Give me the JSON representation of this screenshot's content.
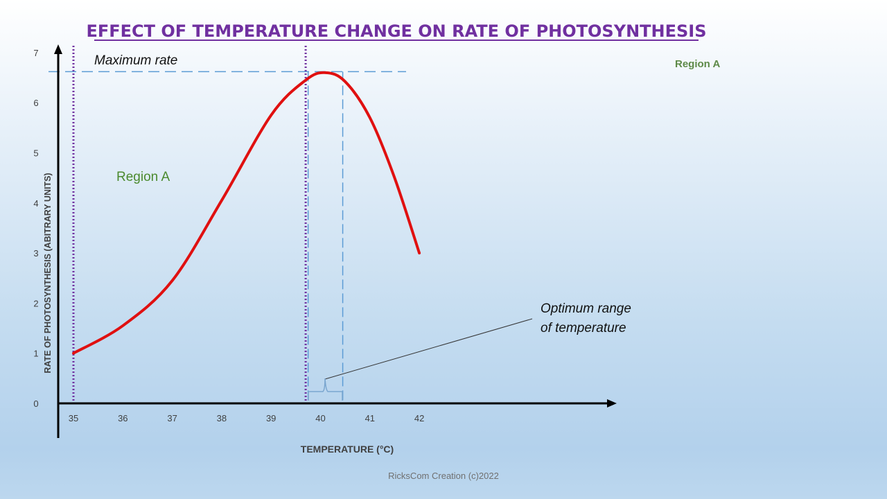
{
  "chart_data": {
    "type": "line",
    "title": "EFFECT OF TEMPERATURE CHANGE ON RATE OF PHOTOSYNTHESIS",
    "xlabel": "TEMPERATURE (°C)",
    "ylabel": "RATE OF PHOTOSYNTHESIS (ABITRARY UNITS)",
    "xlim": [
      35,
      42
    ],
    "ylim": [
      0,
      7
    ],
    "x_ticks": [
      "35",
      "36",
      "37",
      "38",
      "39",
      "40",
      "41",
      "42"
    ],
    "y_ticks": [
      "0",
      "1",
      "2",
      "3",
      "4",
      "5",
      "6",
      "7"
    ],
    "grid": false,
    "series": [
      {
        "color": "#e01010",
        "x": [
          35,
          36,
          37,
          38,
          39,
          39.7,
          40.1,
          40.5,
          41,
          41.5,
          42
        ],
        "y": [
          1.0,
          1.55,
          2.45,
          4.05,
          5.75,
          6.45,
          6.6,
          6.42,
          5.7,
          4.5,
          3.0
        ]
      }
    ],
    "annotations": {
      "max_rate_label": "Maximum rate",
      "max_rate_value": 6.62,
      "region_label": "Region A",
      "region_bounds": [
        35,
        39.7
      ],
      "optimum_label_line1": "Optimum range",
      "optimum_label_line2": "of temperature",
      "optimum_range": [
        39.75,
        40.45
      ]
    },
    "side_label": "Region A",
    "footer": "RicksCom Creation (c)2022",
    "colors": {
      "title": "#7030a0",
      "curve": "#e01010",
      "region_lines": "#7030a0",
      "dashed": "#5b9bd5",
      "region_text": "#4b8a2e"
    }
  }
}
